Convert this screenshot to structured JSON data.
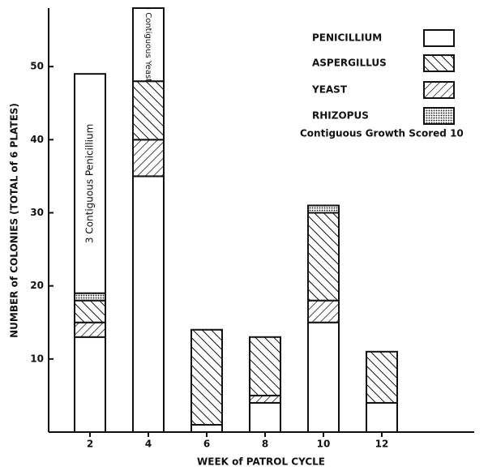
{
  "chart_data": {
    "type": "stacked_bar",
    "xlabel": "WEEK of PATROL CYCLE",
    "ylabel": "NUMBER of COLONIES (TOTAL of 6 PLATES)",
    "categories": [
      "2",
      "4",
      "6",
      "8",
      "10",
      "12"
    ],
    "series": [
      {
        "name": "PENICILLIUM",
        "color": "#ffffff",
        "pattern": "none",
        "values": [
          13,
          35,
          1,
          4,
          15,
          4
        ]
      },
      {
        "name": "ASPERGILLUS",
        "color": "#ffffff",
        "pattern": "backslash",
        "values": [
          3,
          8,
          13,
          8,
          12,
          7
        ]
      },
      {
        "name": "YEAST",
        "color": "#ffffff",
        "pattern": "slash",
        "values": [
          2,
          5,
          null,
          1,
          3,
          null
        ]
      },
      {
        "name": "RHIZOPUS",
        "color": "#ffffff",
        "pattern": "dots",
        "values": [
          1,
          null,
          null,
          null,
          1,
          null
        ]
      }
    ],
    "contiguous": {
      "values": [
        30,
        10,
        null,
        null,
        null,
        null
      ],
      "labels": [
        "3 Contiguous Penicillium",
        "I Contiguous Yeast",
        null,
        null,
        null,
        null
      ]
    },
    "legend_note": "Contiguous Growth Scored 10",
    "ylim": [
      0,
      58
    ],
    "yticks": [
      10,
      20,
      30,
      40,
      50
    ],
    "legend": "upper right",
    "grid": false
  }
}
